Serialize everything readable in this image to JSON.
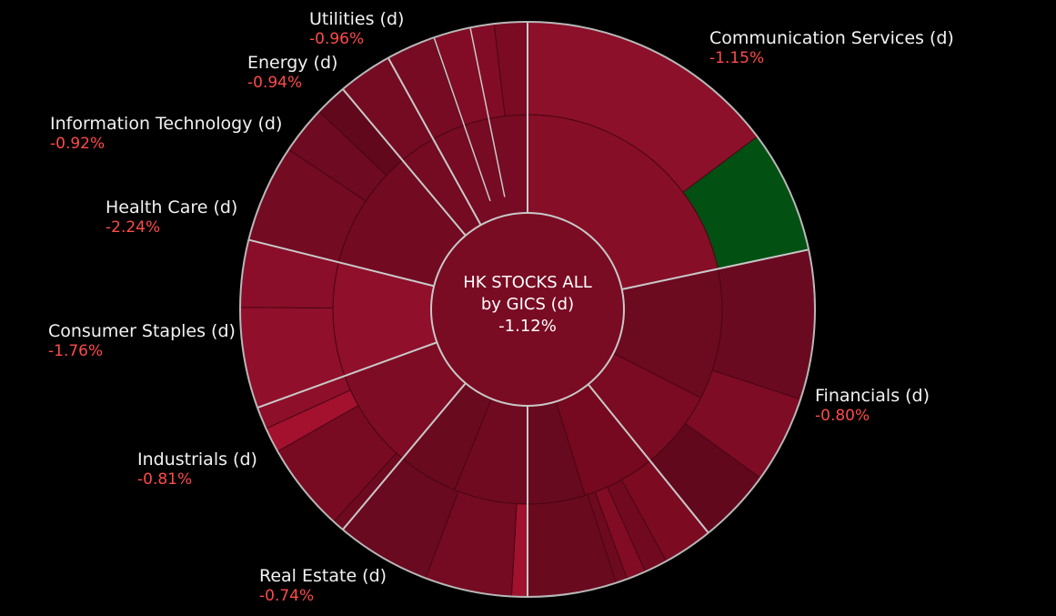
{
  "chart_data": {
    "type": "sunburst",
    "center": {
      "line1": "HK STOCKS ALL",
      "line2": "by GICS (d)",
      "change": "-1.12%"
    },
    "sectors": [
      {
        "name": "Communication Services (d)",
        "change": "-1.15%",
        "color": "#7a0b22",
        "subs": [
          {
            "span": 1,
            "color": "#860f27"
          }
        ],
        "leaves": [
          {
            "span": 0.68,
            "color": "#8c1029"
          },
          {
            "span": 0.32,
            "color": "#035013"
          }
        ]
      },
      {
        "name": "Financials (d)",
        "change": "-0.80%",
        "color": "#6c0a20",
        "subs": [
          {
            "span": 0.62,
            "color": "#6c0a20"
          },
          {
            "span": 0.38,
            "color": "#7b0b22"
          }
        ],
        "leaves": [
          {
            "span": 0.48,
            "color": "#6a0a20"
          },
          {
            "span": 0.28,
            "color": "#7e0c24"
          },
          {
            "span": 0.24,
            "color": "#62081d"
          }
        ]
      },
      {
        "name": "Real Estate (d)",
        "change": "-0.74%",
        "color": "#720b21",
        "subs": [
          {
            "span": 0.56,
            "color": "#76091f"
          },
          {
            "span": 0.44,
            "color": "#680a1f"
          }
        ],
        "leaves": [
          {
            "span": 0.26,
            "color": "#7c0b22"
          },
          {
            "span": 0.12,
            "color": "#710a20"
          },
          {
            "span": 0.1,
            "color": "#820c24"
          },
          {
            "span": 0.06,
            "color": "#6e0a20"
          },
          {
            "span": 0.46,
            "color": "#6a0a1f"
          }
        ]
      },
      {
        "name": "Industrials (d)",
        "change": "-0.81%",
        "color": "#700a21",
        "subs": [
          {
            "span": 0.55,
            "color": "#700a21"
          },
          {
            "span": 0.45,
            "color": "#6a0a1f"
          }
        ],
        "leaves": [
          {
            "span": 0.08,
            "color": "#a0122e"
          },
          {
            "span": 0.44,
            "color": "#740b22"
          },
          {
            "span": 0.48,
            "color": "#690a20"
          }
        ]
      },
      {
        "name": "Consumer Staples (d)",
        "change": "-1.76%",
        "color": "#7e0c24",
        "subs": [
          {
            "span": 1,
            "color": "#7e0c24"
          }
        ],
        "leaves": [
          {
            "span": 0.08,
            "color": "#6e0a20"
          },
          {
            "span": 0.6,
            "color": "#780b22"
          },
          {
            "span": 0.17,
            "color": "#a3112f"
          },
          {
            "span": 0.15,
            "color": "#8e0f2a"
          }
        ]
      },
      {
        "name": "Health Care (d)",
        "change": "-2.24%",
        "color": "#900f2b",
        "subs": [
          {
            "span": 1,
            "color": "#900f2b"
          }
        ],
        "leaves": [
          {
            "span": 0.6,
            "color": "#900f2b"
          },
          {
            "span": 0.4,
            "color": "#8a0e29"
          }
        ]
      },
      {
        "name": "Information Technology (d)",
        "change": "-0.92%",
        "color": "#720b21",
        "subs": [
          {
            "span": 1,
            "color": "#720b21"
          }
        ],
        "leaves": [
          {
            "span": 0.55,
            "color": "#730b22"
          },
          {
            "span": 0.27,
            "color": "#6e0a21"
          },
          {
            "span": 0.18,
            "color": "#62081d"
          }
        ]
      },
      {
        "name": "Energy (d)",
        "change": "-0.94%",
        "color": "#740b22",
        "subs": [
          {
            "span": 1,
            "color": "#740b22"
          }
        ],
        "leaves": [
          {
            "span": 1,
            "color": "#740b22"
          }
        ]
      },
      {
        "name": "Utilities (d)",
        "change": "-0.96%",
        "color": "#760b23",
        "subs": [
          {
            "span": 1,
            "color": "#760b23"
          }
        ],
        "leaves": [
          {
            "span": 0.34,
            "color": "#760b23"
          },
          {
            "span": 0.43,
            "color": "#820c25"
          },
          {
            "span": 0.23,
            "color": "#7a0b23"
          }
        ]
      }
    ]
  }
}
